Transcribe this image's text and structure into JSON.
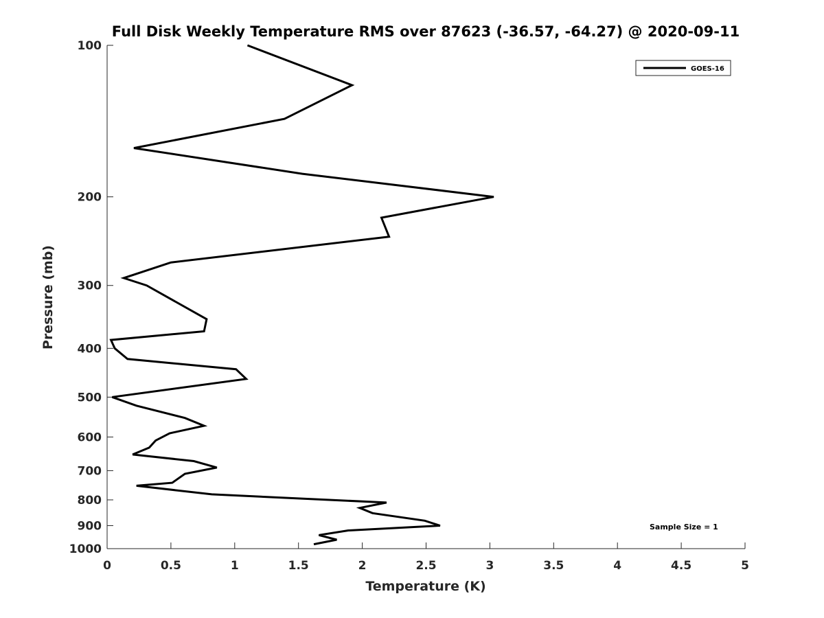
{
  "chart_data": {
    "type": "line",
    "title": "Full Disk Weekly Temperature RMS over 87623 (-36.57, -64.27) @ 2020-09-11",
    "xlabel": "Temperature (K)",
    "ylabel": "Pressure (mb)",
    "xlim": [
      0,
      5
    ],
    "ylim": [
      1000,
      100
    ],
    "y_scale": "log",
    "y_reversed": true,
    "grid": false,
    "legend_position": "top-right",
    "x_ticks": [
      0,
      0.5,
      1,
      1.5,
      2,
      2.5,
      3,
      3.5,
      4,
      4.5,
      5
    ],
    "x_tick_labels": [
      "0",
      "0.5",
      "1",
      "1.5",
      "2",
      "2.5",
      "3",
      "3.5",
      "4",
      "4.5",
      "5"
    ],
    "y_ticks": [
      100,
      200,
      300,
      400,
      500,
      600,
      700,
      800,
      900,
      1000
    ],
    "y_tick_labels": [
      "100",
      "200",
      "300",
      "400",
      "500",
      "600",
      "700",
      "800",
      "900",
      "1000"
    ],
    "series": [
      {
        "name": "GOES-16",
        "color": "#000000",
        "x": [
          1.1,
          1.92,
          1.39,
          0.21,
          1.53,
          3.03,
          2.15,
          2.21,
          0.5,
          0.13,
          0.31,
          0.78,
          0.76,
          0.03,
          0.06,
          0.16,
          1.01,
          1.09,
          0.04,
          0.23,
          0.61,
          0.76,
          0.49,
          0.38,
          0.33,
          0.2,
          0.68,
          0.86,
          0.61,
          0.51,
          0.23,
          0.82,
          2.19,
          1.98,
          2.08,
          2.49,
          2.61,
          1.89,
          1.66,
          1.8,
          1.62
        ],
        "y": [
          100,
          120,
          140,
          160,
          180,
          200,
          220,
          240,
          270,
          290,
          300,
          350,
          370,
          385,
          400,
          420,
          440,
          460,
          500,
          520,
          550,
          570,
          590,
          610,
          630,
          650,
          670,
          690,
          710,
          740,
          750,
          780,
          810,
          830,
          850,
          880,
          900,
          920,
          940,
          960,
          980
        ]
      }
    ],
    "annotations": [
      "Sample Size = 1"
    ]
  }
}
